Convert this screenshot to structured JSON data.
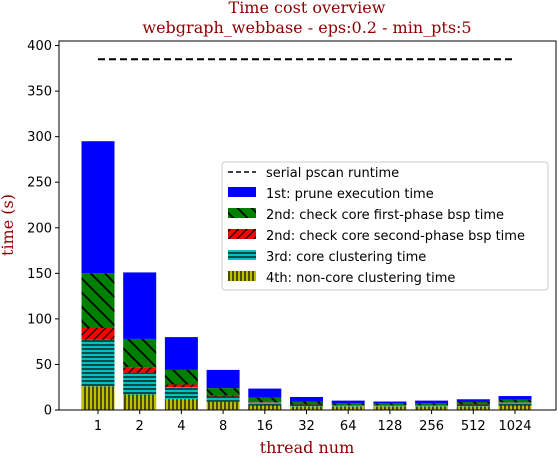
{
  "chart_data": {
    "type": "bar",
    "title": "Time cost overview",
    "subtitle": "webgraph_webbase - eps:0.2 - min_pts:5",
    "xlabel": "thread num",
    "ylabel": "time (s)",
    "ylim": [
      0,
      405
    ],
    "yticks": [
      0,
      50,
      100,
      150,
      200,
      250,
      300,
      350,
      400
    ],
    "categories": [
      "1",
      "2",
      "4",
      "8",
      "16",
      "32",
      "64",
      "128",
      "256",
      "512",
      "1024"
    ],
    "stacked": true,
    "series": [
      {
        "name": "4th: non-core clustering time",
        "color": "#bfbf00",
        "hatch": "vertical",
        "values": [
          26,
          17,
          12,
          9,
          5,
          4,
          4,
          4,
          4,
          4,
          5
        ]
      },
      {
        "name": "3rd: core clustering time",
        "color": "#00bfbf",
        "hatch": "horizontal",
        "values": [
          51,
          24,
          13,
          6,
          3,
          2,
          1,
          1,
          1,
          2,
          3
        ]
      },
      {
        "name": "2nd: check core second-phase bsp time",
        "color": "#ff0000",
        "hatch": "diagonal-forward",
        "values": [
          13,
          6,
          3,
          1,
          0.5,
          0.3,
          0.3,
          0.3,
          0.3,
          0.3,
          0.3
        ]
      },
      {
        "name": "2nd: check core first-phase bsp time",
        "color": "#008000",
        "hatch": "diagonal-back",
        "values": [
          60,
          31,
          16,
          8,
          5,
          3,
          2,
          2,
          2,
          2.5,
          3
        ]
      },
      {
        "name": "1st: prune execution time",
        "color": "#0000ff",
        "hatch": "none",
        "values": [
          145,
          73,
          36,
          20,
          10,
          5,
          3,
          2,
          3,
          3,
          4
        ]
      }
    ],
    "reference_line": {
      "name": "serial pscan runtime",
      "value": 385,
      "style": "dashed",
      "color": "#000000"
    },
    "legend": {
      "placement": "center-right",
      "order": [
        "serial pscan runtime",
        "1st: prune execution time",
        "2nd: check core first-phase bsp time",
        "2nd: check core second-phase bsp time",
        "3rd: core clustering time",
        "4th: non-core clustering time"
      ]
    },
    "grid": false
  }
}
